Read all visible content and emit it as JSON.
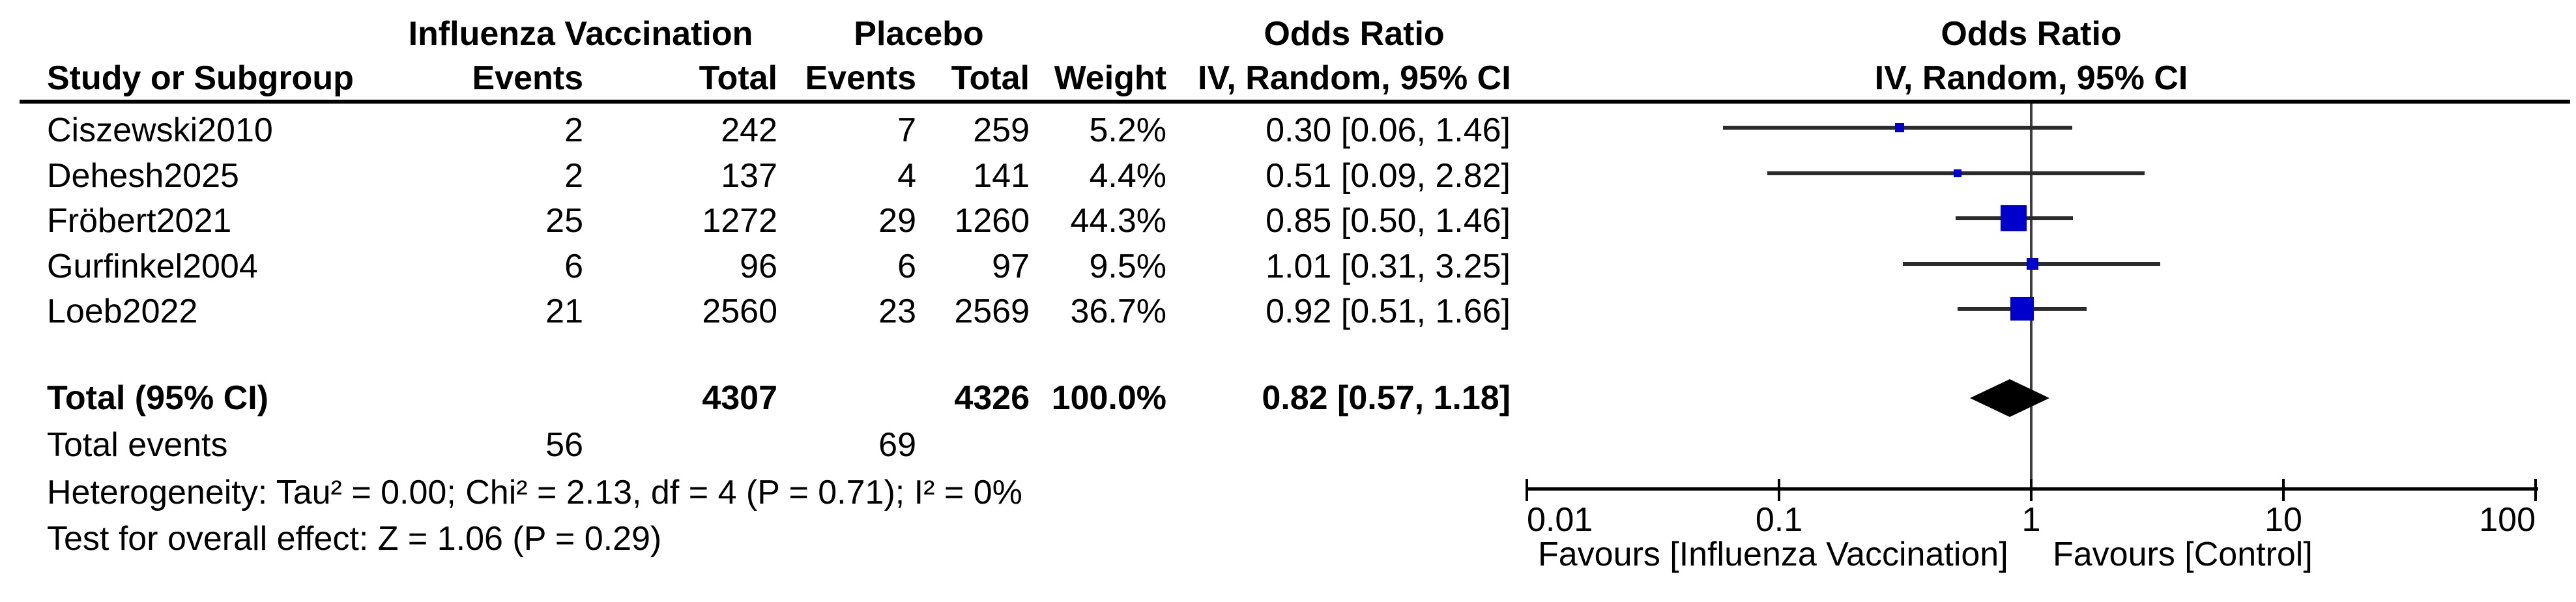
{
  "table": {
    "columns": {
      "group1": "Influenza Vaccination",
      "group2": "Placebo",
      "study": "Study or Subgroup",
      "events": "Events",
      "total": "Total",
      "weight": "Weight",
      "or_line1": "Odds Ratio",
      "or_line2": "IV, Random, 95% CI"
    },
    "studies": [
      {
        "name": "Ciszewski2010",
        "events1": "2",
        "total1": "242",
        "events2": "7",
        "total2": "259",
        "weight": "5.2%",
        "or_text": "0.30 [0.06, 1.46]"
      },
      {
        "name": "Dehesh2025",
        "events1": "2",
        "total1": "137",
        "events2": "4",
        "total2": "141",
        "weight": "4.4%",
        "or_text": "0.51 [0.09, 2.82]"
      },
      {
        "name": "Fröbert2021",
        "events1": "25",
        "total1": "1272",
        "events2": "29",
        "total2": "1260",
        "weight": "44.3%",
        "or_text": "0.85 [0.50, 1.46]"
      },
      {
        "name": "Gurfinkel2004",
        "events1": "6",
        "total1": "96",
        "events2": "6",
        "total2": "97",
        "weight": "9.5%",
        "or_text": "1.01 [0.31, 3.25]"
      },
      {
        "name": "Loeb2022",
        "events1": "21",
        "total1": "2560",
        "events2": "23",
        "total2": "2569",
        "weight": "36.7%",
        "or_text": "0.92 [0.51, 1.66]"
      }
    ],
    "total_row": {
      "label": "Total (95% CI)",
      "total1": "4307",
      "total2": "4326",
      "weight": "100.0%",
      "or_text": "0.82 [0.57, 1.18]"
    },
    "total_events": {
      "label": "Total events",
      "events1": "56",
      "events2": "69"
    },
    "heterogeneity": "Heterogeneity: Tau² = 0.00; Chi² = 2.13, df = 4 (P = 0.71); I² = 0%",
    "overall_effect": "Test for overall effect: Z = 1.06 (P = 0.29)"
  },
  "plot": {
    "title_line1": "Odds Ratio",
    "title_line2": "IV, Random, 95% CI",
    "tick_labels": [
      "0.01",
      "0.1",
      "1",
      "10",
      "100"
    ],
    "favours_left": "Favours [Influenza Vaccination]",
    "favours_right": "Favours [Control]",
    "marker_color": "#0000CC"
  },
  "chart_data": {
    "type": "forest",
    "title": "Odds Ratio, IV, Random, 95% CI",
    "x_scale": "log",
    "x_ticks": [
      0.01,
      0.1,
      1,
      10,
      100
    ],
    "x_range": [
      0.01,
      100
    ],
    "null_line": 1,
    "studies": [
      {
        "name": "Ciszewski2010",
        "or": 0.3,
        "ci_low": 0.06,
        "ci_high": 1.46,
        "weight_pct": 5.2
      },
      {
        "name": "Dehesh2025",
        "or": 0.51,
        "ci_low": 0.09,
        "ci_high": 2.82,
        "weight_pct": 4.4
      },
      {
        "name": "Fröbert2021",
        "or": 0.85,
        "ci_low": 0.5,
        "ci_high": 1.46,
        "weight_pct": 44.3
      },
      {
        "name": "Gurfinkel2004",
        "or": 1.01,
        "ci_low": 0.31,
        "ci_high": 3.25,
        "weight_pct": 9.5
      },
      {
        "name": "Loeb2022",
        "or": 0.92,
        "ci_low": 0.51,
        "ci_high": 1.66,
        "weight_pct": 36.7
      }
    ],
    "total": {
      "label": "Total (95% CI)",
      "or": 0.82,
      "ci_low": 0.57,
      "ci_high": 1.18,
      "weight_pct": 100.0,
      "events_treatment": 56,
      "total_treatment": 4307,
      "events_control": 69,
      "total_control": 4326
    },
    "heterogeneity": {
      "tau2": 0.0,
      "chi2": 2.13,
      "df": 4,
      "p": 0.71,
      "i2_pct": 0
    },
    "overall_effect": {
      "z": 1.06,
      "p": 0.29
    }
  }
}
